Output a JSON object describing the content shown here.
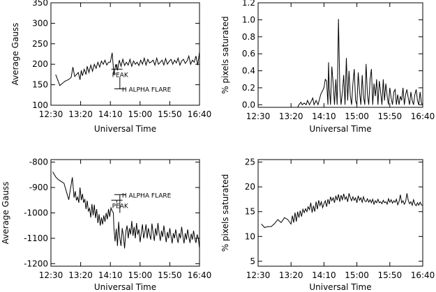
{
  "chart_data": [
    {
      "type": "line",
      "xlabel": "Universal Time",
      "ylabel": "Average Gauss",
      "x_ticks": [
        0,
        50,
        100,
        150,
        200,
        250
      ],
      "x_tick_labels": [
        "12:30",
        "13:20",
        "14:10",
        "15:00",
        "15:50",
        "16:40"
      ],
      "xlim": [
        0,
        250
      ],
      "y_ticks": [
        100,
        150,
        200,
        250,
        300,
        350
      ],
      "ylim": [
        100,
        350
      ],
      "series": [
        {
          "x": [
            8,
            15,
            23,
            30,
            34,
            37,
            40,
            43,
            46,
            49,
            51,
            53,
            56,
            59,
            61,
            64,
            67,
            70,
            73,
            76,
            79,
            82,
            85,
            88,
            91,
            94,
            97,
            100,
            103,
            106,
            109,
            112,
            115,
            118,
            121,
            124,
            127,
            130,
            133,
            136,
            139,
            142,
            145,
            148,
            151,
            154,
            157,
            160,
            163,
            166,
            169,
            172,
            175,
            178,
            181,
            184,
            187,
            190,
            193,
            196,
            199,
            202,
            205,
            208,
            211,
            214,
            217,
            220,
            223,
            226,
            229,
            232,
            235,
            238,
            241,
            244,
            247,
            250
          ],
          "y": [
            175,
            148,
            158,
            163,
            168,
            193,
            170,
            175,
            180,
            162,
            185,
            172,
            188,
            175,
            195,
            180,
            198,
            183,
            200,
            190,
            205,
            193,
            208,
            200,
            210,
            198,
            205,
            205,
            228,
            175,
            200,
            185,
            210,
            195,
            212,
            197,
            205,
            198,
            212,
            195,
            208,
            200,
            205,
            197,
            210,
            200,
            215,
            198,
            212,
            203,
            206,
            210,
            198,
            215,
            200,
            205,
            210,
            198,
            214,
            200,
            207,
            212,
            200,
            210,
            203,
            215,
            198,
            208,
            212,
            202,
            208,
            220,
            200,
            210,
            205,
            220,
            198,
            230
          ]
        }
      ],
      "annotations": [
        {
          "text": "PEAK",
          "x": 111,
          "y1": 200,
          "y2": 188
        },
        {
          "text": "H ALPHA FLARE",
          "x": 116,
          "y1": 168,
          "y2": 140
        }
      ]
    },
    {
      "type": "line",
      "xlabel": "Universal Time",
      "ylabel": "% pixels saturated",
      "x_ticks": [
        0,
        50,
        100,
        150,
        200,
        250
      ],
      "x_tick_labels": [
        "12:30",
        "13:20",
        "14:10",
        "15:00",
        "15:50",
        "16:40"
      ],
      "xlim": [
        0,
        250
      ],
      "y_ticks": [
        0.0,
        0.2,
        0.4,
        0.6,
        0.8,
        1.0,
        1.2
      ],
      "y_tick_labels": [
        "0.0",
        "0.2",
        "0.4",
        "0.6",
        "0.8",
        "1.0",
        "1.2"
      ],
      "ylim": [
        -0.03,
        1.2
      ],
      "series": [
        {
          "x": [
            0,
            10,
            20,
            30,
            40,
            50,
            60,
            62,
            65,
            67,
            70,
            73,
            75,
            78,
            80,
            83,
            85,
            88,
            91,
            95,
            100,
            102,
            104,
            106,
            107,
            108,
            110,
            112,
            114,
            116,
            118,
            120,
            122,
            124,
            126,
            128,
            130,
            132,
            134,
            136,
            138,
            140,
            142,
            144,
            146,
            148,
            150,
            152,
            154,
            156,
            158,
            160,
            162,
            164,
            166,
            168,
            170,
            172,
            174,
            176,
            178,
            180,
            182,
            184,
            186,
            188,
            190,
            192,
            194,
            196,
            198,
            200,
            202,
            204,
            206,
            208,
            210,
            212,
            214,
            216,
            218,
            220,
            222,
            224,
            226,
            228,
            230,
            232,
            234,
            236,
            238,
            240,
            242,
            244,
            246,
            248,
            250
          ],
          "y": [
            -0.03,
            -0.03,
            -0.03,
            -0.03,
            -0.03,
            -0.03,
            -0.03,
            0.0,
            0.03,
            0.0,
            0.02,
            0.0,
            0.05,
            0.0,
            0.03,
            0.08,
            0.0,
            0.05,
            0.0,
            0.12,
            0.2,
            0.3,
            0.28,
            0.0,
            0.5,
            0.2,
            0.0,
            0.45,
            0.25,
            0.0,
            0.3,
            0.0,
            1.01,
            0.2,
            0.0,
            0.15,
            0.35,
            0.0,
            0.55,
            0.05,
            0.4,
            0.1,
            0.0,
            0.25,
            0.42,
            0.05,
            0.0,
            0.38,
            0.15,
            0.0,
            0.35,
            0.1,
            0.0,
            0.48,
            0.12,
            0.0,
            0.3,
            0.42,
            0.0,
            0.25,
            0.1,
            0.3,
            0.0,
            0.28,
            0.15,
            0.0,
            0.3,
            0.05,
            0.25,
            0.1,
            0.0,
            0.2,
            0.08,
            0.0,
            0.15,
            0.18,
            0.0,
            0.12,
            0.0,
            0.1,
            0.05,
            0.2,
            0.0,
            0.12,
            0.18,
            0.08,
            0.0,
            0.15,
            0.05,
            0.0,
            0.12,
            0.18,
            0.05,
            0.0,
            0.15,
            0.02,
            0.0
          ]
        }
      ]
    },
    {
      "type": "line",
      "xlabel": "Universal Time",
      "ylabel": "Average Gauss",
      "x_ticks": [
        0,
        50,
        100,
        150,
        200,
        250
      ],
      "x_tick_labels": [
        "12:30",
        "13:20",
        "14:10",
        "15:00",
        "15:50",
        "16:40"
      ],
      "xlim": [
        0,
        250
      ],
      "y_ticks": [
        -1200,
        -1100,
        -1000,
        -900,
        -800
      ],
      "ylim": [
        -1210,
        -790
      ],
      "series": [
        {
          "x": [
            3,
            8,
            12,
            17,
            22,
            27,
            30,
            33,
            36,
            39,
            41,
            43,
            45,
            47,
            49,
            51,
            53,
            55,
            57,
            59,
            61,
            63,
            65,
            67,
            69,
            71,
            73,
            75,
            77,
            79,
            81,
            83,
            85,
            87,
            89,
            91,
            93,
            95,
            97,
            99,
            101,
            103,
            105,
            106,
            108,
            110,
            112,
            114,
            116,
            118,
            120,
            122,
            124,
            126,
            128,
            130,
            132,
            134,
            136,
            138,
            140,
            142,
            144,
            146,
            148,
            150,
            152,
            154,
            156,
            158,
            160,
            162,
            164,
            166,
            168,
            170,
            172,
            174,
            176,
            178,
            180,
            182,
            184,
            186,
            188,
            190,
            192,
            194,
            196,
            198,
            200,
            202,
            204,
            206,
            208,
            210,
            212,
            214,
            216,
            218,
            220,
            222,
            224,
            226,
            228,
            230,
            232,
            234,
            236,
            238,
            240,
            242,
            244,
            246,
            248,
            250
          ],
          "y": [
            -838,
            -858,
            -868,
            -876,
            -883,
            -924,
            -948,
            -904,
            -860,
            -940,
            -915,
            -951,
            -938,
            -960,
            -900,
            -950,
            -925,
            -960,
            -945,
            -985,
            -952,
            -993,
            -982,
            -1018,
            -965,
            -1010,
            -968,
            -1020,
            -985,
            -1040,
            -1005,
            -1050,
            -1018,
            -1045,
            -1010,
            -1035,
            -1000,
            -1025,
            -985,
            -1015,
            -980,
            -992,
            -1000,
            -1060,
            -1112,
            -1062,
            -1130,
            -1035,
            -1100,
            -1130,
            -1060,
            -1090,
            -1140,
            -1073,
            -1050,
            -1100,
            -1060,
            -1085,
            -1032,
            -1090,
            -1055,
            -1100,
            -1040,
            -1085,
            -1065,
            -1115,
            -1080,
            -1045,
            -1100,
            -1078,
            -1045,
            -1100,
            -1060,
            -1085,
            -1105,
            -1042,
            -1078,
            -1110,
            -1060,
            -1090,
            -1040,
            -1080,
            -1110,
            -1070,
            -1095,
            -1050,
            -1085,
            -1115,
            -1075,
            -1100,
            -1060,
            -1090,
            -1120,
            -1080,
            -1100,
            -1065,
            -1095,
            -1118,
            -1080,
            -1100,
            -1055,
            -1090,
            -1120,
            -1080,
            -1105,
            -1065,
            -1095,
            -1118,
            -1082,
            -1105,
            -1070,
            -1100,
            -1118,
            -1085,
            -1100,
            -1140
          ]
        }
      ],
      "annotations": [
        {
          "text": "H ALPHA FLARE",
          "x": 116,
          "y1": -1000,
          "y2": -928
        },
        {
          "text": "PEAK",
          "x": 111,
          "y1": -960,
          "y2": -950
        }
      ]
    },
    {
      "type": "line",
      "xlabel": "Universal Time",
      "ylabel": "% pixels saturated",
      "x_ticks": [
        0,
        50,
        100,
        150,
        200,
        250
      ],
      "x_tick_labels": [
        "12:30",
        "13:20",
        "14:10",
        "15:00",
        "15:50",
        "16:40"
      ],
      "xlim": [
        0,
        250
      ],
      "y_ticks": [
        5,
        10,
        15,
        20,
        25
      ],
      "ylim": [
        4,
        25.5
      ],
      "series": [
        {
          "x": [
            5,
            10,
            15,
            20,
            25,
            30,
            35,
            40,
            45,
            50,
            52,
            54,
            56,
            58,
            60,
            62,
            64,
            66,
            68,
            70,
            72,
            74,
            76,
            78,
            80,
            82,
            84,
            86,
            88,
            90,
            92,
            94,
            96,
            98,
            100,
            102,
            104,
            106,
            108,
            110,
            112,
            114,
            116,
            118,
            120,
            122,
            124,
            126,
            128,
            130,
            132,
            134,
            136,
            138,
            140,
            142,
            144,
            146,
            148,
            150,
            152,
            154,
            156,
            158,
            160,
            162,
            164,
            166,
            168,
            170,
            172,
            174,
            176,
            178,
            180,
            182,
            184,
            186,
            188,
            190,
            192,
            194,
            196,
            198,
            200,
            202,
            204,
            206,
            208,
            210,
            212,
            214,
            216,
            218,
            220,
            222,
            224,
            226,
            228,
            230,
            232,
            234,
            236,
            238,
            240,
            242,
            244,
            246,
            248,
            250
          ],
          "y": [
            12.5,
            11.8,
            12.0,
            12.0,
            12.6,
            13.4,
            12.8,
            13.8,
            13.4,
            12.5,
            14.2,
            12.8,
            14.8,
            13.0,
            15.0,
            13.8,
            15.2,
            14.0,
            15.5,
            14.8,
            15.6,
            15.0,
            16.0,
            15.4,
            16.8,
            14.8,
            16.2,
            15.0,
            17.0,
            15.5,
            17.3,
            16.2,
            17.0,
            15.8,
            16.6,
            17.2,
            16.0,
            17.5,
            16.5,
            18.0,
            17.2,
            17.8,
            16.8,
            18.2,
            17.3,
            18.5,
            17.0,
            18.3,
            17.4,
            18.6,
            17.5,
            18.0,
            17.0,
            18.7,
            17.8,
            17.2,
            18.0,
            17.3,
            17.8,
            16.8,
            18.2,
            17.3,
            17.8,
            16.9,
            18.0,
            17.2,
            17.0,
            17.6,
            16.9,
            17.4,
            16.8,
            17.5,
            16.5,
            17.2,
            16.8,
            17.5,
            16.8,
            17.0,
            16.6,
            17.3,
            16.8,
            17.0,
            16.5,
            17.6,
            16.9,
            17.4,
            16.7,
            17.2,
            16.9,
            17.5,
            16.4,
            17.0,
            18.4,
            16.8,
            17.2,
            16.5,
            17.0,
            18.7,
            17.3,
            16.6,
            17.0,
            16.3,
            17.4,
            16.5,
            16.2,
            16.8,
            16.3,
            16.9,
            16.4,
            16.2
          ]
        }
      ]
    }
  ]
}
